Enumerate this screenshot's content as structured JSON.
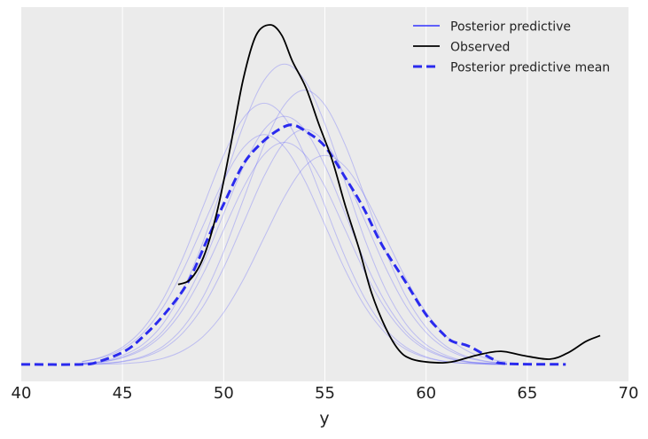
{
  "chart_data": {
    "type": "line",
    "title": "",
    "xlabel": "y",
    "ylabel": "",
    "xlim": [
      40,
      70
    ],
    "ylim": [
      -0.0065,
      0.1368
    ],
    "x_ticks": [
      "40",
      "45",
      "50",
      "55",
      "60",
      "65",
      "70"
    ],
    "y_ticks_visible": false,
    "grid": "vertical",
    "legend_placement": "top-right",
    "colors": {
      "posterior_predictive": "#3333ff",
      "observed": "#000000",
      "mean": "#2a2aee",
      "plot_bg": "#ebebeb",
      "grid": "#ffffff"
    },
    "legend": [
      {
        "label": "Posterior predictive",
        "style": "solid-thin-blue"
      },
      {
        "label": "Observed",
        "style": "solid-black"
      },
      {
        "label": "Posterior predictive mean",
        "style": "dashed-blue"
      }
    ],
    "posterior_predictive": {
      "x": [
        43,
        44,
        45,
        46,
        47,
        48,
        49,
        50,
        51,
        52,
        53,
        54,
        55,
        56,
        57,
        58,
        59,
        60,
        61,
        62,
        63,
        64
      ],
      "samples": [
        [
          0.0004,
          0.001,
          0.0028,
          0.0063,
          0.0128,
          0.0237,
          0.039,
          0.0577,
          0.0761,
          0.0899,
          0.095,
          0.0899,
          0.0761,
          0.0577,
          0.039,
          0.0237,
          0.0128,
          0.0063,
          0.0028,
          0.001,
          0.0004,
          0.0001
        ],
        [
          0.0001,
          0.0004,
          0.0012,
          0.003,
          0.0069,
          0.0142,
          0.0261,
          0.0432,
          0.0637,
          0.0841,
          0.0993,
          0.105,
          0.0993,
          0.0841,
          0.0637,
          0.0432,
          0.0261,
          0.0142,
          0.0069,
          0.003,
          0.0012,
          0.0004
        ],
        [
          0.0003,
          0.0009,
          0.0025,
          0.0056,
          0.0115,
          0.0212,
          0.0349,
          0.0516,
          0.0681,
          0.0804,
          0.085,
          0.0804,
          0.0681,
          0.0516,
          0.0349,
          0.0212,
          0.0115,
          0.0056,
          0.0025,
          0.0009,
          0.0003,
          0.0001
        ],
        [
          0.0011,
          0.0029,
          0.0066,
          0.0135,
          0.0249,
          0.0411,
          0.0607,
          0.0801,
          0.0946,
          0.1,
          0.0946,
          0.0801,
          0.0607,
          0.0411,
          0.0249,
          0.0135,
          0.0066,
          0.0029,
          0.0011,
          0.0004,
          0.0001,
          0
        ],
        [
          0.0001,
          0.0003,
          0.001,
          0.0026,
          0.0059,
          0.0122,
          0.0224,
          0.037,
          0.0546,
          0.0721,
          0.0851,
          0.09,
          0.0851,
          0.0721,
          0.0546,
          0.037,
          0.0224,
          0.0122,
          0.0059,
          0.0026,
          0.001,
          0.0003
        ],
        [
          0,
          0.0001,
          0.0003,
          0.0009,
          0.0023,
          0.0053,
          0.0108,
          0.0199,
          0.0329,
          0.0486,
          0.0641,
          0.0757,
          0.08,
          0.0757,
          0.0641,
          0.0486,
          0.0329,
          0.0199,
          0.0108,
          0.0053,
          0.0023,
          0.0009
        ],
        [
          0.0005,
          0.0012,
          0.0034,
          0.0076,
          0.0155,
          0.0287,
          0.0473,
          0.0698,
          0.0921,
          0.1088,
          0.115,
          0.1088,
          0.0921,
          0.0698,
          0.0473,
          0.0287,
          0.0155,
          0.0076,
          0.0034,
          0.0012,
          0.0005,
          0.0001
        ],
        [
          0.001,
          0.0026,
          0.0058,
          0.0119,
          0.0219,
          0.0362,
          0.0534,
          0.0705,
          0.0832,
          0.088,
          0.0832,
          0.0705,
          0.0534,
          0.0362,
          0.0219,
          0.0119,
          0.0058,
          0.0026,
          0.001,
          0.0004,
          0.0001,
          0
        ]
      ]
    },
    "observed": {
      "x": [
        47.75,
        48.36,
        49.0,
        49.66,
        50.3,
        50.96,
        51.6,
        52.3,
        52.87,
        53.4,
        54.06,
        54.7,
        55.37,
        56.0,
        56.7,
        57.3,
        58.0,
        58.66,
        59.3,
        60.4,
        61.3,
        62.6,
        63.7,
        64.8,
        66.1,
        67.0,
        67.9,
        68.6
      ],
      "y": [
        0.0306,
        0.0326,
        0.041,
        0.058,
        0.082,
        0.109,
        0.126,
        0.13,
        0.126,
        0.116,
        0.106,
        0.092,
        0.078,
        0.061,
        0.044,
        0.0275,
        0.014,
        0.0054,
        0.002,
        0.0007,
        0.001,
        0.0037,
        0.005,
        0.0034,
        0.002,
        0.0044,
        0.0088,
        0.011
      ]
    },
    "mean": {
      "x": [
        40,
        43,
        43.8,
        45.1,
        46.0,
        47.05,
        48.2,
        49.2,
        50.1,
        51.0,
        51.9,
        52.75,
        53.4,
        54.1,
        55.0,
        56.0,
        56.9,
        57.8,
        58.9,
        60.0,
        60.8,
        61.3,
        62.1,
        63.3,
        63.9,
        66.9
      ],
      "y": [
        0,
        0,
        0.001,
        0.005,
        0.0105,
        0.019,
        0.031,
        0.048,
        0.063,
        0.077,
        0.085,
        0.09,
        0.0917,
        0.089,
        0.0835,
        0.0716,
        0.06,
        0.046,
        0.0326,
        0.019,
        0.012,
        0.0088,
        0.007,
        0.002,
        0.0003,
        0
      ]
    }
  }
}
